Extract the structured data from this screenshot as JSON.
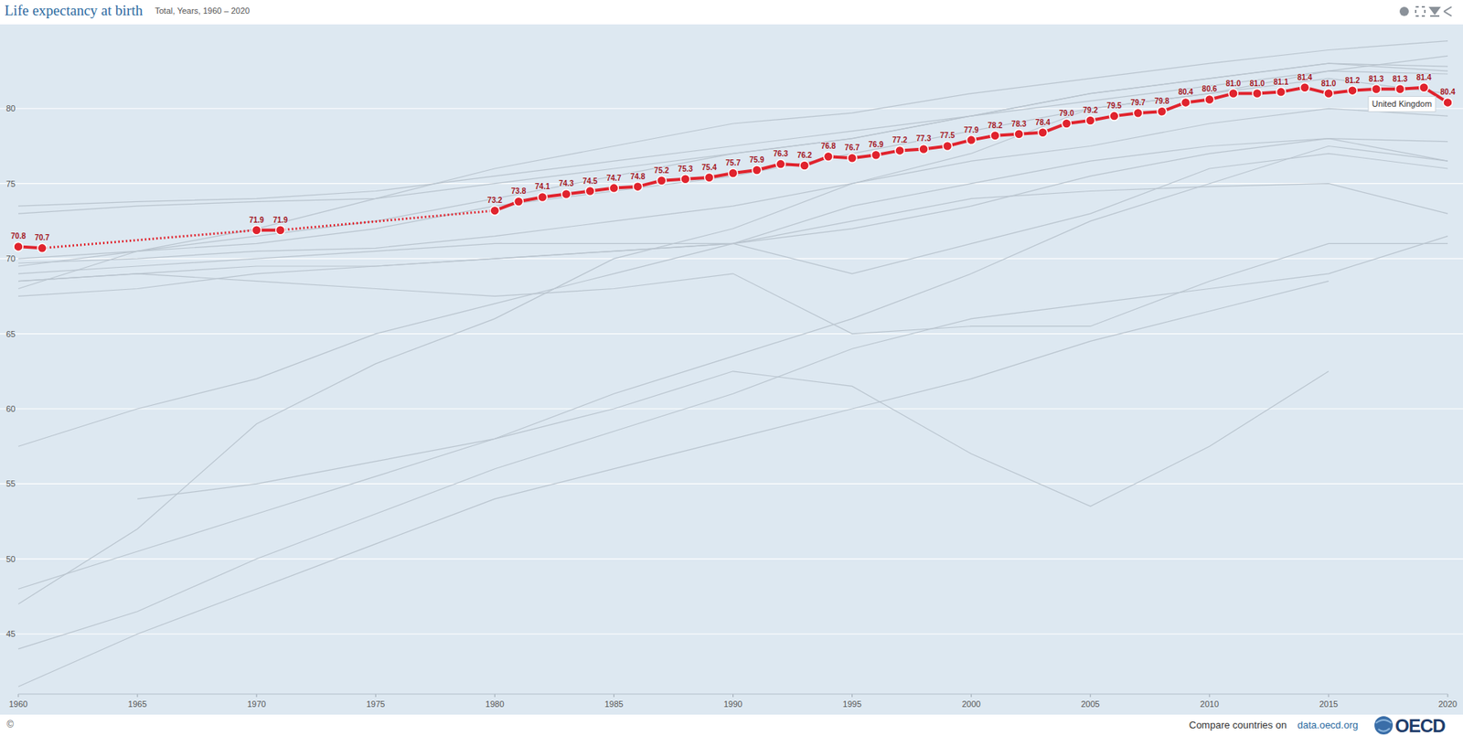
{
  "chart_data": {
    "type": "line",
    "title": "Life expectancy at birth",
    "subtitle": "Total, Years, 1960 – 2020",
    "copyright": "©",
    "source_text": "Compare countries on",
    "source_link": "data.oecd.org",
    "logo": "OECD",
    "xlim": [
      1960,
      2020
    ],
    "xticks": [
      1960,
      1965,
      1970,
      1975,
      1980,
      1985,
      1990,
      1995,
      2000,
      2005,
      2010,
      2015,
      2020
    ],
    "ylim": [
      41,
      85.5
    ],
    "yticks": [
      45,
      50,
      55,
      60,
      65,
      70,
      75,
      80
    ],
    "grid": true,
    "data_labels": true,
    "series": [
      {
        "color": "#b9c4ce",
        "marker": "none",
        "line_style": "solid",
        "x": [
          1960,
          1965,
          1970,
          1975,
          1980,
          1985,
          1990,
          1995,
          2000,
          2005,
          2010,
          2015,
          2020
        ],
        "values": [
          68,
          70.5,
          72,
          74,
          76,
          77.5,
          79,
          79.7,
          81,
          82,
          83,
          83.9,
          84.5
        ]
      },
      {
        "color": "#b9c4ce",
        "marker": "none",
        "line_style": "solid",
        "x": [
          1960,
          1965,
          1970,
          1975,
          1980,
          1985,
          1990,
          1995,
          2000,
          2005,
          2010,
          2015,
          2020
        ],
        "values": [
          73.5,
          73.8,
          74,
          74.5,
          75.5,
          76.5,
          77.5,
          78.5,
          79.5,
          81,
          82,
          83,
          82.8
        ]
      },
      {
        "color": "#b9c4ce",
        "marker": "none",
        "line_style": "solid",
        "x": [
          1960,
          1965,
          1970,
          1975,
          1980,
          1985,
          1990,
          1995,
          2000,
          2005,
          2010,
          2015,
          2020
        ],
        "values": [
          73,
          73.5,
          73.8,
          74,
          75,
          76,
          77,
          78,
          79.5,
          80.5,
          81.5,
          82.5,
          82.3
        ]
      },
      {
        "color": "#b9c4ce",
        "marker": "none",
        "line_style": "solid",
        "x": [
          1960,
          1965,
          1970,
          1975,
          1980,
          1985,
          1990,
          1995,
          2000,
          2005,
          2010,
          2015,
          2020
        ],
        "values": [
          69.5,
          70.5,
          71.5,
          72.5,
          74,
          75.5,
          77,
          78,
          79.5,
          81,
          82,
          83,
          82.5
        ]
      },
      {
        "color": "#b9c4ce",
        "marker": "none",
        "line_style": "solid",
        "x": [
          1960,
          1965,
          1970,
          1975,
          1980,
          1985,
          1990,
          1995,
          2000,
          2005,
          2010,
          2015,
          2020
        ],
        "values": [
          70,
          70.5,
          71,
          72,
          73.5,
          74.5,
          75.5,
          77,
          78.5,
          80,
          81,
          82,
          81
        ]
      },
      {
        "color": "#b9c4ce",
        "marker": "none",
        "line_style": "solid",
        "x": [
          1960,
          1965,
          1970,
          1975,
          1980,
          1985,
          1990,
          1995,
          2000,
          2005,
          2010,
          2015,
          2020
        ],
        "values": [
          69.7,
          70,
          70.5,
          70.7,
          71.5,
          72.5,
          73.5,
          75,
          76.5,
          77.5,
          79,
          80,
          79.5
        ]
      },
      {
        "color": "#b9c4ce",
        "marker": "none",
        "line_style": "solid",
        "x": [
          1960,
          1965,
          1970,
          1975,
          1980,
          1985,
          1990,
          1995,
          2000,
          2005,
          2010,
          2015,
          2020
        ],
        "values": [
          69,
          69.5,
          70,
          70.5,
          71,
          71,
          71,
          73.5,
          75,
          76.5,
          77.5,
          78,
          77.8
        ]
      },
      {
        "color": "#b9c4ce",
        "marker": "none",
        "line_style": "solid",
        "x": [
          1960,
          1965,
          1970,
          1975,
          1980,
          1985,
          1990,
          1995,
          2000,
          2005,
          2010,
          2015,
          2020
        ],
        "values": [
          67.5,
          68,
          69,
          69.5,
          70,
          70.5,
          71,
          72,
          73.5,
          75.5,
          77,
          78,
          76.5
        ]
      },
      {
        "color": "#b9c4ce",
        "marker": "none",
        "line_style": "solid",
        "x": [
          1960,
          1965,
          1970,
          1975,
          1980,
          1985,
          1990,
          1995,
          2000,
          2005,
          2010,
          2015,
          2020
        ],
        "values": [
          68.5,
          69,
          69.5,
          69.5,
          70,
          70.5,
          71,
          69,
          71,
          73,
          76,
          77,
          76
        ]
      },
      {
        "color": "#b9c4ce",
        "marker": "none",
        "line_style": "solid",
        "x": [
          1960,
          1965,
          1970,
          1975,
          1980,
          1985,
          1990,
          1995,
          2000,
          2005,
          2010,
          2015,
          2020
        ],
        "values": [
          68.5,
          69,
          68.5,
          68,
          67.5,
          68,
          69,
          65,
          65.5,
          65.5,
          68.5,
          71,
          71
        ]
      },
      {
        "color": "#b9c4ce",
        "marker": "none",
        "line_style": "solid",
        "x": [
          1960,
          1965,
          1970,
          1975,
          1980,
          1985,
          1990,
          1995,
          2000,
          2005,
          2010,
          2015,
          2020
        ],
        "values": [
          57.5,
          60,
          62,
          65,
          67,
          69,
          71,
          72.5,
          74,
          74.5,
          74.8,
          75,
          73
        ]
      },
      {
        "color": "#b9c4ce",
        "marker": "none",
        "line_style": "solid",
        "x": [
          1960,
          1965,
          1970,
          1975,
          1980,
          1985,
          1990,
          1995,
          2000,
          2005,
          2010,
          2015,
          2020
        ],
        "values": [
          48,
          50.5,
          53,
          55.5,
          58,
          61,
          63.5,
          66,
          69,
          72.5,
          75,
          77.5,
          76.5
        ]
      },
      {
        "color": "#b9c4ce",
        "marker": "none",
        "line_style": "solid",
        "x": [
          1960,
          1965,
          1970,
          1975,
          1980,
          1985,
          1990,
          1995,
          2000,
          2005,
          2010,
          2015,
          2020
        ],
        "values": [
          47,
          52,
          59,
          63,
          66,
          70,
          72,
          75,
          77,
          80,
          81,
          82.5,
          83.5
        ]
      },
      {
        "color": "#b9c4ce",
        "marker": "none",
        "line_style": "solid",
        "x": [
          1960,
          1965,
          1970,
          1975,
          1980,
          1985,
          1990,
          1995,
          2000,
          2005,
          2010,
          2015,
          2020
        ],
        "values": [
          41.5,
          45,
          48,
          51,
          54,
          56,
          58,
          60,
          62,
          64.5,
          66.5,
          68.5,
          null
        ]
      },
      {
        "color": "#b9c4ce",
        "marker": "none",
        "line_style": "solid",
        "x": [
          1960,
          1965,
          1970,
          1975,
          1980,
          1985,
          1990,
          1995,
          2000,
          2005,
          2010,
          2015,
          2020
        ],
        "values": [
          null,
          54,
          55,
          56.5,
          58,
          60,
          62.5,
          61.5,
          57,
          53.5,
          57.5,
          62.5,
          null
        ]
      },
      {
        "color": "#b9c4ce",
        "marker": "none",
        "line_style": "solid",
        "x": [
          1960,
          1965,
          1970,
          1975,
          1980,
          1985,
          1990,
          1995,
          2000,
          2005,
          2010,
          2015,
          2020
        ],
        "values": [
          44,
          46.5,
          50,
          53,
          56,
          58.5,
          61,
          64,
          66,
          67,
          68,
          69,
          71.5
        ]
      },
      {
        "name": "United Kingdom",
        "color": "#e0232d",
        "marker": "circle",
        "line_style": "solid",
        "x": [
          1960,
          1961,
          1970,
          1971,
          1980,
          1981,
          1982,
          1983,
          1984,
          1985,
          1986,
          1987,
          1988,
          1989,
          1990,
          1991,
          1992,
          1993,
          1994,
          1995,
          1996,
          1997,
          1998,
          1999,
          2000,
          2001,
          2002,
          2003,
          2004,
          2005,
          2006,
          2007,
          2008,
          2009,
          2010,
          2011,
          2012,
          2013,
          2014,
          2015,
          2016,
          2017,
          2018,
          2019,
          2020
        ],
        "values": [
          70.8,
          70.7,
          71.9,
          71.9,
          73.2,
          73.8,
          74.1,
          74.3,
          74.5,
          74.7,
          74.8,
          75.2,
          75.3,
          75.4,
          75.7,
          75.9,
          76.3,
          76.2,
          76.8,
          76.7,
          76.9,
          77.2,
          77.3,
          77.5,
          77.9,
          78.2,
          78.3,
          78.4,
          79.0,
          79.2,
          79.5,
          79.7,
          79.8,
          80.4,
          80.6,
          81.0,
          81.0,
          81.1,
          81.4,
          81.0,
          81.2,
          81.3,
          81.3,
          81.4,
          80.4
        ],
        "value_labels": [
          "70.8",
          "70.7",
          "71.9",
          "71.9",
          "73.2",
          "73.8",
          "74.1",
          "74.3",
          "74.5",
          "74.7",
          "74.8",
          "75.2",
          "75.3",
          "75.4",
          "75.7",
          "75.9",
          "76.3",
          "76.2",
          "76.8",
          "76.7",
          "76.9",
          "77.2",
          "77.3",
          "77.5",
          "77.9",
          "78.2",
          "78.3",
          "78.4",
          "79.0",
          "79.2",
          "79.5",
          "79.7",
          "79.8",
          "80.4",
          "80.6",
          "81.0",
          "81.0",
          "81.1",
          "81.4",
          "81.0",
          "81.2",
          "81.3",
          "81.3",
          "81.4",
          "80.4"
        ]
      }
    ]
  }
}
